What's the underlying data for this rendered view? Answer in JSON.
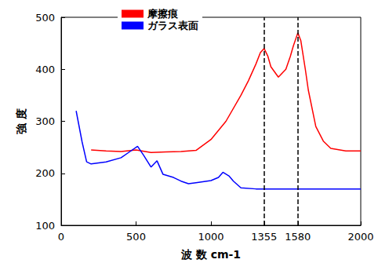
{
  "chart_data": {
    "type": "line",
    "x_label": "波 数 cm-1",
    "y_label": "強 度",
    "xlim": [
      0,
      2000
    ],
    "xticks": [
      0,
      500,
      1000,
      1355,
      1580,
      2000
    ],
    "ylim": [
      100,
      500
    ],
    "yticks": [
      100,
      200,
      300,
      400,
      500
    ],
    "reference_lines": [
      1355,
      1580
    ],
    "grid": false,
    "legend": "top-left",
    "series": [
      {
        "name": "摩擦痕",
        "color": "#ff0000",
        "line_style": "solid",
        "x": [
          200,
          300,
          400,
          500,
          600,
          700,
          800,
          900,
          1000,
          1100,
          1200,
          1250,
          1300,
          1330,
          1355,
          1380,
          1400,
          1450,
          1500,
          1530,
          1550,
          1580,
          1600,
          1630,
          1650,
          1700,
          1750,
          1800,
          1900,
          2000
        ],
        "values": [
          245,
          243,
          242,
          245,
          240,
          241,
          242,
          244,
          265,
          300,
          350,
          378,
          410,
          432,
          440,
          425,
          405,
          385,
          400,
          425,
          445,
          470,
          455,
          400,
          360,
          290,
          262,
          248,
          243,
          243
        ]
      },
      {
        "name": "ガラス表面",
        "color": "#0000ff",
        "line_style": "solid",
        "x": [
          100,
          140,
          170,
          200,
          300,
          400,
          450,
          510,
          550,
          600,
          620,
          640,
          680,
          750,
          800,
          850,
          900,
          1000,
          1050,
          1080,
          1120,
          1150,
          1200,
          1300,
          1500,
          1700,
          2000
        ],
        "values": [
          320,
          260,
          222,
          218,
          222,
          230,
          240,
          252,
          235,
          212,
          218,
          224,
          198,
          192,
          185,
          180,
          182,
          186,
          192,
          202,
          195,
          185,
          172,
          170,
          170,
          170,
          170
        ]
      }
    ]
  }
}
